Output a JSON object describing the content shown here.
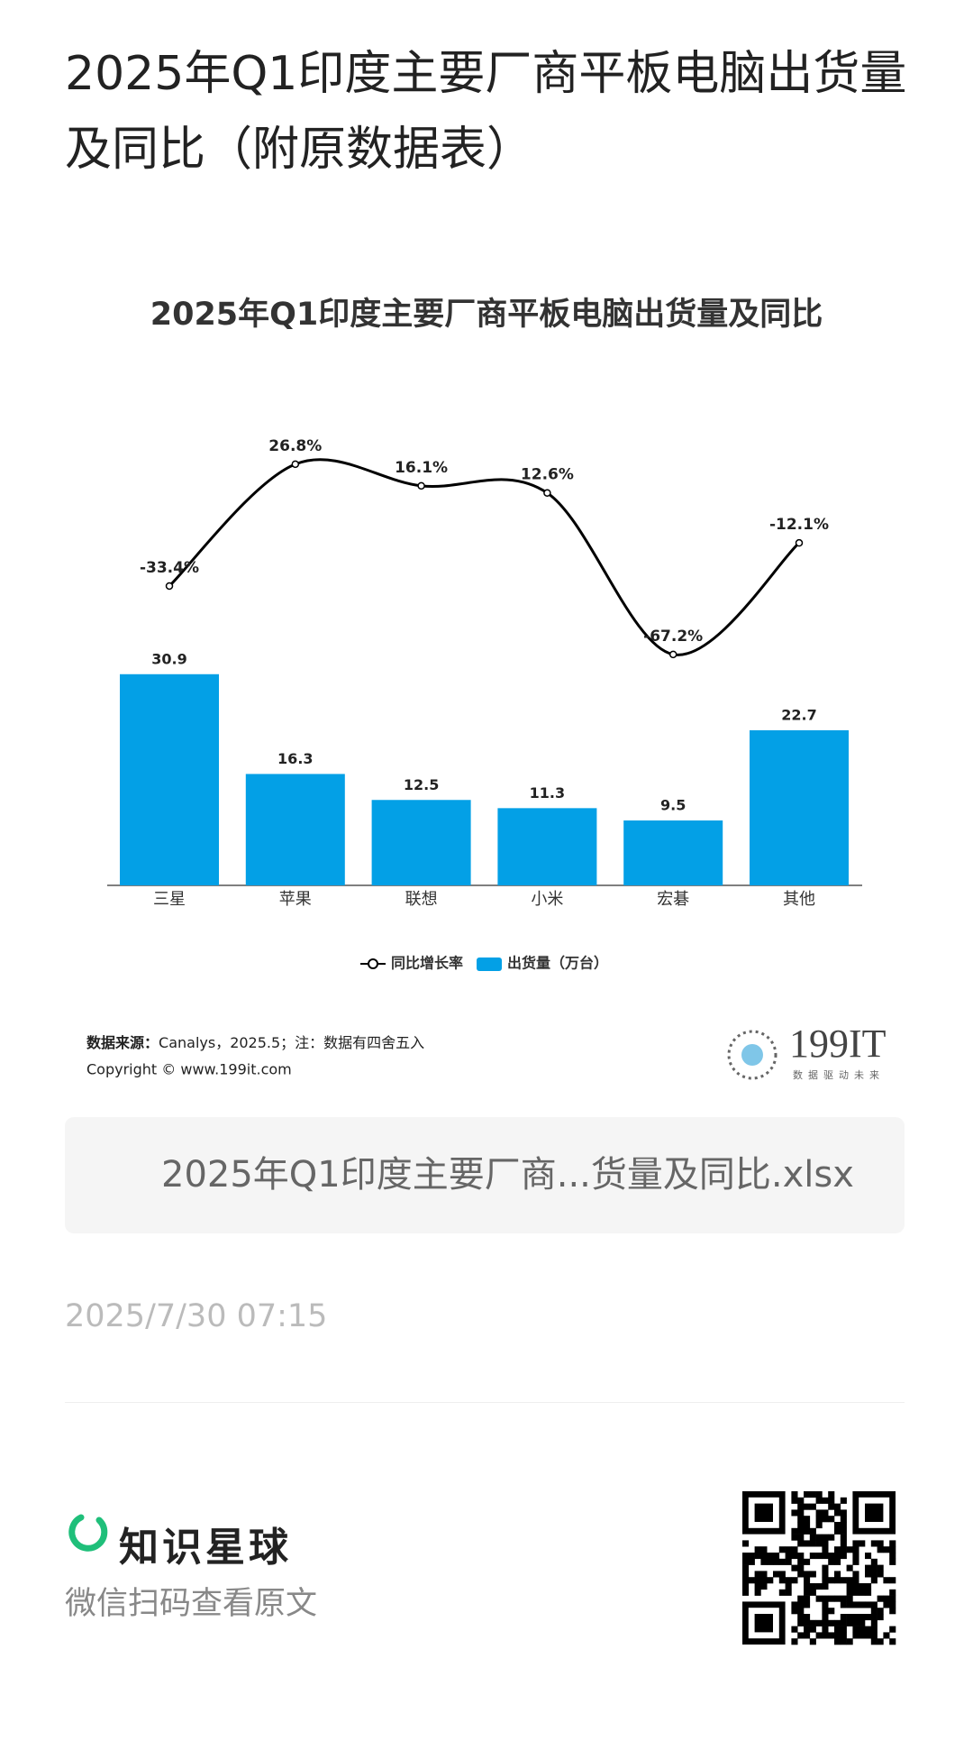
{
  "page": {
    "title": "2025年Q1印度主要厂商平板电脑出货量及同比（附原数据表）",
    "attachment": "2025年Q1印度主要厂商...货量及同比.xlsx",
    "timestamp": "2025/7/30 07:15",
    "brand": "知识星球",
    "scan_hint": "微信扫码查看原文"
  },
  "chart_data": {
    "type": "combo",
    "title": "2025年Q1印度主要厂商平板电脑出货量及同比",
    "categories": [
      "三星",
      "苹果",
      "联想",
      "小米",
      "宏碁",
      "其他"
    ],
    "series": [
      {
        "name": "同比增长率",
        "type": "line",
        "color": "#000000",
        "values": [
          -33.4,
          26.8,
          16.1,
          12.6,
          -67.2,
          -12.1
        ],
        "value_labels": [
          "-33.4%",
          "26.8%",
          "16.1%",
          "12.6%",
          "-67.2%",
          "-12.1%"
        ]
      },
      {
        "name": "出货量（万台）",
        "type": "bar",
        "color": "#03a0e6",
        "values": [
          30.9,
          16.3,
          12.5,
          11.3,
          9.5,
          22.7
        ]
      }
    ],
    "source_label": "数据来源：",
    "source": "Canalys，2025.5；注：数据有四舍五入",
    "copyright": "Copyright ©  www.199it.com",
    "logo": "199IT",
    "logo_tagline": "数据驱动未来"
  }
}
